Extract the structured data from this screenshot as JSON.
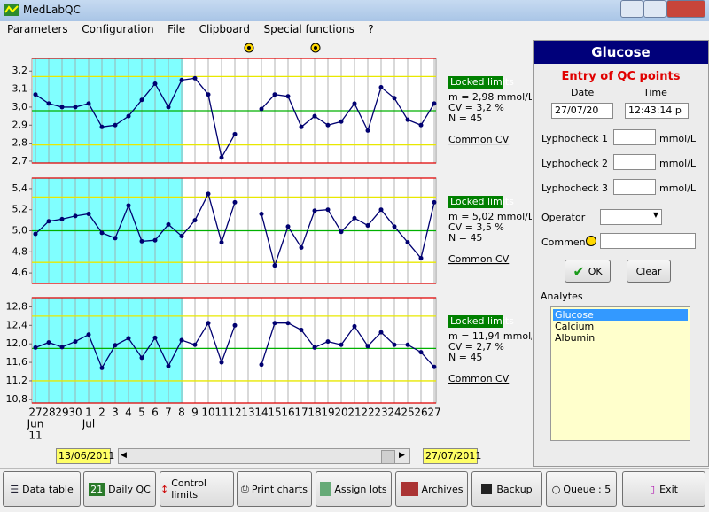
{
  "window": {
    "title": "MedLabQC"
  },
  "menu": [
    "Parameters",
    "Configuration",
    "File",
    "Clipboard",
    "Special functions",
    "?"
  ],
  "chart_data": [
    {
      "type": "line",
      "categories": [
        "27",
        "28",
        "29",
        "30",
        "1",
        "2",
        "3",
        "4",
        "5",
        "6",
        "7",
        "8",
        "9",
        "10",
        "11",
        "12",
        "13",
        "14",
        "15",
        "16",
        "17",
        "18",
        "19",
        "20",
        "21",
        "22",
        "23",
        "24",
        "25",
        "26",
        "27"
      ],
      "values": [
        3.07,
        3.02,
        3.0,
        3.0,
        3.02,
        2.89,
        2.9,
        2.95,
        3.04,
        3.13,
        3.0,
        3.15,
        3.16,
        3.07,
        2.72,
        2.85,
        null,
        2.99,
        3.07,
        3.06,
        2.89,
        2.95,
        2.9,
        2.92,
        3.02,
        2.87,
        3.11,
        3.05,
        2.93,
        2.9,
        3.02
      ],
      "color": "#000070",
      "ylim": [
        2.69,
        3.27
      ],
      "yticks": [
        {
          "value": 2.7,
          "label": "2,7"
        },
        {
          "value": 2.8,
          "label": "2,8"
        },
        {
          "value": 2.9,
          "label": "2,9"
        },
        {
          "value": 3.0,
          "label": "3,0"
        },
        {
          "value": 3.1,
          "label": "3,1"
        },
        {
          "value": 3.2,
          "label": "3,2"
        }
      ],
      "reference_lines": [
        {
          "value": 3.27,
          "color": "#e00000"
        },
        {
          "value": 3.17,
          "color": "#e8e800"
        },
        {
          "value": 2.98,
          "color": "#00b000"
        },
        {
          "value": 2.79,
          "color": "#e8e800"
        },
        {
          "value": 2.69,
          "color": "#e00000"
        }
      ],
      "shaded": [
        0,
        11
      ],
      "shade_color": "#80ffff",
      "status": "Locked limits",
      "stats": [
        "m = 2,98 mmol/L",
        "CV = 3,2 %",
        "N = 45"
      ],
      "link": "Common CV"
    },
    {
      "type": "line",
      "categories": [
        "27",
        "28",
        "29",
        "30",
        "1",
        "2",
        "3",
        "4",
        "5",
        "6",
        "7",
        "8",
        "9",
        "10",
        "11",
        "12",
        "13",
        "14",
        "15",
        "16",
        "17",
        "18",
        "19",
        "20",
        "21",
        "22",
        "23",
        "24",
        "25",
        "26",
        "27"
      ],
      "values": [
        4.97,
        5.09,
        5.11,
        5.14,
        5.16,
        4.98,
        4.93,
        5.24,
        4.9,
        4.91,
        5.06,
        4.95,
        5.1,
        5.35,
        4.89,
        5.27,
        null,
        5.16,
        4.67,
        5.04,
        4.84,
        5.19,
        5.2,
        4.99,
        5.12,
        5.05,
        5.2,
        5.04,
        4.89,
        4.74,
        5.27
      ],
      "color": "#000070",
      "ylim": [
        4.5,
        5.5
      ],
      "yticks": [
        {
          "value": 4.6,
          "label": "4,6"
        },
        {
          "value": 4.8,
          "label": "4,8"
        },
        {
          "value": 5.0,
          "label": "5,0"
        },
        {
          "value": 5.2,
          "label": "5,2"
        },
        {
          "value": 5.4,
          "label": "5,4"
        }
      ],
      "reference_lines": [
        {
          "value": 5.5,
          "color": "#e00000"
        },
        {
          "value": 5.32,
          "color": "#e8e800"
        },
        {
          "value": 5.0,
          "color": "#00b000"
        },
        {
          "value": 4.7,
          "color": "#e8e800"
        },
        {
          "value": 4.5,
          "color": "#e00000"
        }
      ],
      "shaded": [
        0,
        11
      ],
      "shade_color": "#80ffff",
      "status": "Locked limits",
      "stats": [
        "m = 5,02 mmol/L",
        "CV = 3,5 %",
        "N = 45"
      ],
      "link": "Common CV"
    },
    {
      "type": "line",
      "categories": [
        "27",
        "28",
        "29",
        "30",
        "1",
        "2",
        "3",
        "4",
        "5",
        "6",
        "7",
        "8",
        "9",
        "10",
        "11",
        "12",
        "13",
        "14",
        "15",
        "16",
        "17",
        "18",
        "19",
        "20",
        "21",
        "22",
        "23",
        "24",
        "25",
        "26",
        "27"
      ],
      "month_labels": [
        {
          "category": 0,
          "lines": [
            "Jun",
            "11"
          ]
        },
        {
          "category": 4,
          "lines": [
            "Jul"
          ]
        }
      ],
      "values": [
        11.92,
        12.03,
        11.93,
        12.05,
        12.2,
        11.48,
        11.97,
        12.12,
        11.7,
        12.13,
        11.52,
        12.08,
        11.98,
        12.45,
        11.6,
        12.4,
        null,
        11.55,
        12.45,
        12.45,
        12.3,
        11.92,
        12.05,
        11.98,
        12.38,
        11.95,
        12.25,
        11.98,
        11.98,
        11.82,
        11.5
      ],
      "color": "#000070",
      "ylim": [
        10.72,
        13.0
      ],
      "yticks": [
        {
          "value": 10.8,
          "label": "10,8"
        },
        {
          "value": 11.2,
          "label": "11,2"
        },
        {
          "value": 11.6,
          "label": "11,6"
        },
        {
          "value": 12.0,
          "label": "12,0"
        },
        {
          "value": 12.4,
          "label": "12,4"
        },
        {
          "value": 12.8,
          "label": "12,8"
        }
      ],
      "reference_lines": [
        {
          "value": 13.0,
          "color": "#e00000"
        },
        {
          "value": 12.6,
          "color": "#e8e800"
        },
        {
          "value": 11.9,
          "color": "#00b000"
        },
        {
          "value": 11.2,
          "color": "#e8e800"
        },
        {
          "value": 10.72,
          "color": "#e00000"
        }
      ],
      "shaded": [
        0,
        11
      ],
      "shade_color": "#80ffff",
      "status": "Locked limits",
      "stats": [
        "m = 11,94 mmol/L",
        "CV = 2,7 %",
        "N = 45"
      ],
      "link": "Common CV"
    }
  ],
  "range": {
    "start": "13/06/2011",
    "end": "27/07/2011"
  },
  "panel": {
    "title": "Glucose",
    "heading": "Entry of QC points",
    "date_label": "Date",
    "time_label": "Time",
    "date": "27/07/20",
    "time": "12:43:14 p",
    "fields": [
      {
        "label": "Lyphocheck 1",
        "unit": "mmol/L"
      },
      {
        "label": "Lyphocheck 2",
        "unit": "mmol/L"
      },
      {
        "label": "Lyphocheck 3",
        "unit": "mmol/L"
      }
    ],
    "operator_label": "Operator",
    "comment_label": "Comment",
    "ok": "OK",
    "clear": "Clear",
    "analytes_label": "Analytes",
    "analytes": [
      "Glucose",
      "Calcium",
      "Albumin"
    ]
  },
  "toolbar": [
    "Data table",
    "Daily QC",
    "Control limits",
    "Print charts",
    "Assign lots",
    "Archives",
    "Backup",
    "Queue : 5",
    "Exit"
  ]
}
